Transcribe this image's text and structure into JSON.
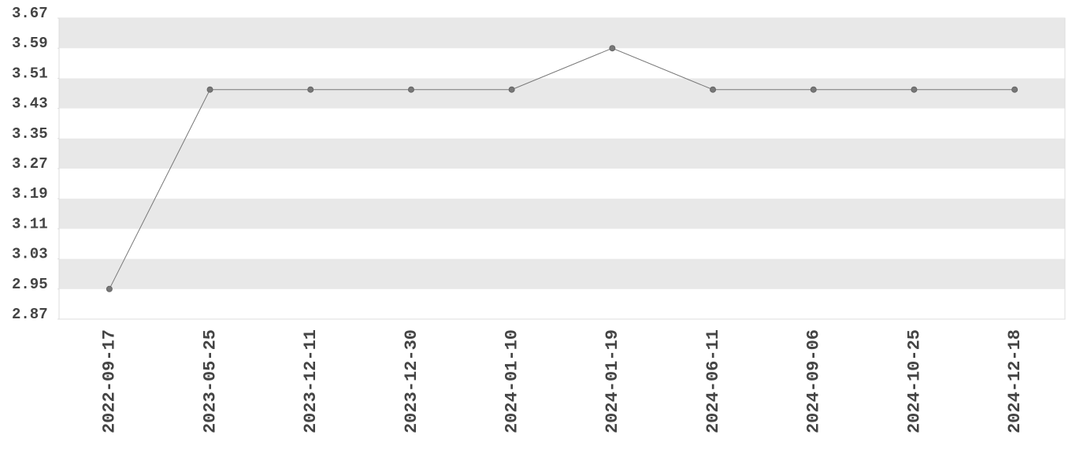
{
  "chart_data": {
    "type": "line",
    "categories": [
      "2022-09-17",
      "2023-05-25",
      "2023-12-11",
      "2023-12-30",
      "2024-01-10",
      "2024-01-19",
      "2024-06-11",
      "2024-09-06",
      "2024-10-25",
      "2024-12-18"
    ],
    "values": [
      2.95,
      3.48,
      3.48,
      3.48,
      3.48,
      3.59,
      3.48,
      3.48,
      3.48,
      3.48
    ],
    "color": "#777777",
    "ylim": [
      2.87,
      3.67
    ],
    "yticks": [
      2.87,
      2.95,
      3.03,
      3.11,
      3.19,
      3.27,
      3.35,
      3.43,
      3.51,
      3.59,
      3.67
    ],
    "banded_grid": true
  }
}
